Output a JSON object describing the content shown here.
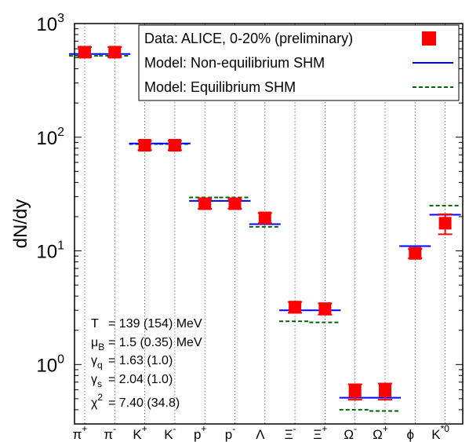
{
  "chart_data": {
    "type": "scatter",
    "ylabel": "dN/dy",
    "yscale": "log",
    "ylim": [
      0.3,
      1000
    ],
    "yticks": [
      {
        "value": 1,
        "base": "10",
        "exp": "0"
      },
      {
        "value": 10,
        "base": "10",
        "exp": "1"
      },
      {
        "value": 100,
        "base": "10",
        "exp": "2"
      },
      {
        "value": 1000,
        "base": "10",
        "exp": "3"
      }
    ],
    "categories": [
      {
        "base": "π",
        "sup": "+"
      },
      {
        "base": "π",
        "sup": "-"
      },
      {
        "base": "K",
        "sup": "+"
      },
      {
        "base": "K",
        "sup": "-"
      },
      {
        "base": "p",
        "sup": "+"
      },
      {
        "base": "p",
        "sup": "-"
      },
      {
        "base": "Λ",
        "sup": ""
      },
      {
        "base": "Ξ",
        "sup": "-"
      },
      {
        "base": "Ξ",
        "sup": "+"
      },
      {
        "base": "Ω",
        "sup": "-"
      },
      {
        "base": "Ω",
        "sup": "+"
      },
      {
        "base": "ϕ",
        "sup": ""
      },
      {
        "base": "K",
        "sup": "*0"
      }
    ],
    "series": [
      {
        "name": "Data: ALICE, 0-20% (preliminary)",
        "color": "#ff0000",
        "marker": "square",
        "values": [
          560,
          560,
          85,
          85,
          26,
          26,
          19.5,
          3.2,
          3.1,
          0.58,
          0.59,
          9.5,
          17.5
        ],
        "err_low": [
          505,
          505,
          77,
          77,
          23.5,
          23.5,
          17.5,
          2.85,
          2.75,
          0.49,
          0.49,
          8.6,
          14.0
        ],
        "err_high": [
          620,
          620,
          93,
          93,
          28.5,
          28.5,
          21.5,
          3.55,
          3.45,
          0.67,
          0.68,
          10.4,
          21.0
        ]
      },
      {
        "name": "Model: Non-equilibrium SHM",
        "color": "#0000ff",
        "style": "solid",
        "values": [
          540,
          540,
          88,
          88,
          27.5,
          27.5,
          17.2,
          3.0,
          3.0,
          0.51,
          0.51,
          11.0,
          20.8
        ]
      },
      {
        "name": "Model: Equilibrium SHM",
        "color": "#006400",
        "style": "dashed",
        "values": [
          520,
          520,
          87,
          87,
          29.5,
          29.5,
          16.3,
          2.4,
          2.35,
          0.4,
          0.39,
          11.0,
          25.0
        ]
      }
    ],
    "annotations": [
      {
        "pre": "T",
        "sub": "",
        "sup": "",
        "post": "= 139 (154) MeV"
      },
      {
        "pre": "μ",
        "sub": "B",
        "sup": "",
        "post": "= 1.5 (0.35) MeV"
      },
      {
        "pre": "γ",
        "sub": "q",
        "sup": "",
        "post": "= 1.63 (1.0)"
      },
      {
        "pre": "γ",
        "sub": "s",
        "sup": "",
        "post": "= 2.04 (1.0)"
      },
      {
        "pre": "χ",
        "sub": "",
        "sup": "2",
        "post": "= 7.40 (34.8)"
      }
    ],
    "legend_position": "top-right",
    "grid": "vertical dotted"
  }
}
